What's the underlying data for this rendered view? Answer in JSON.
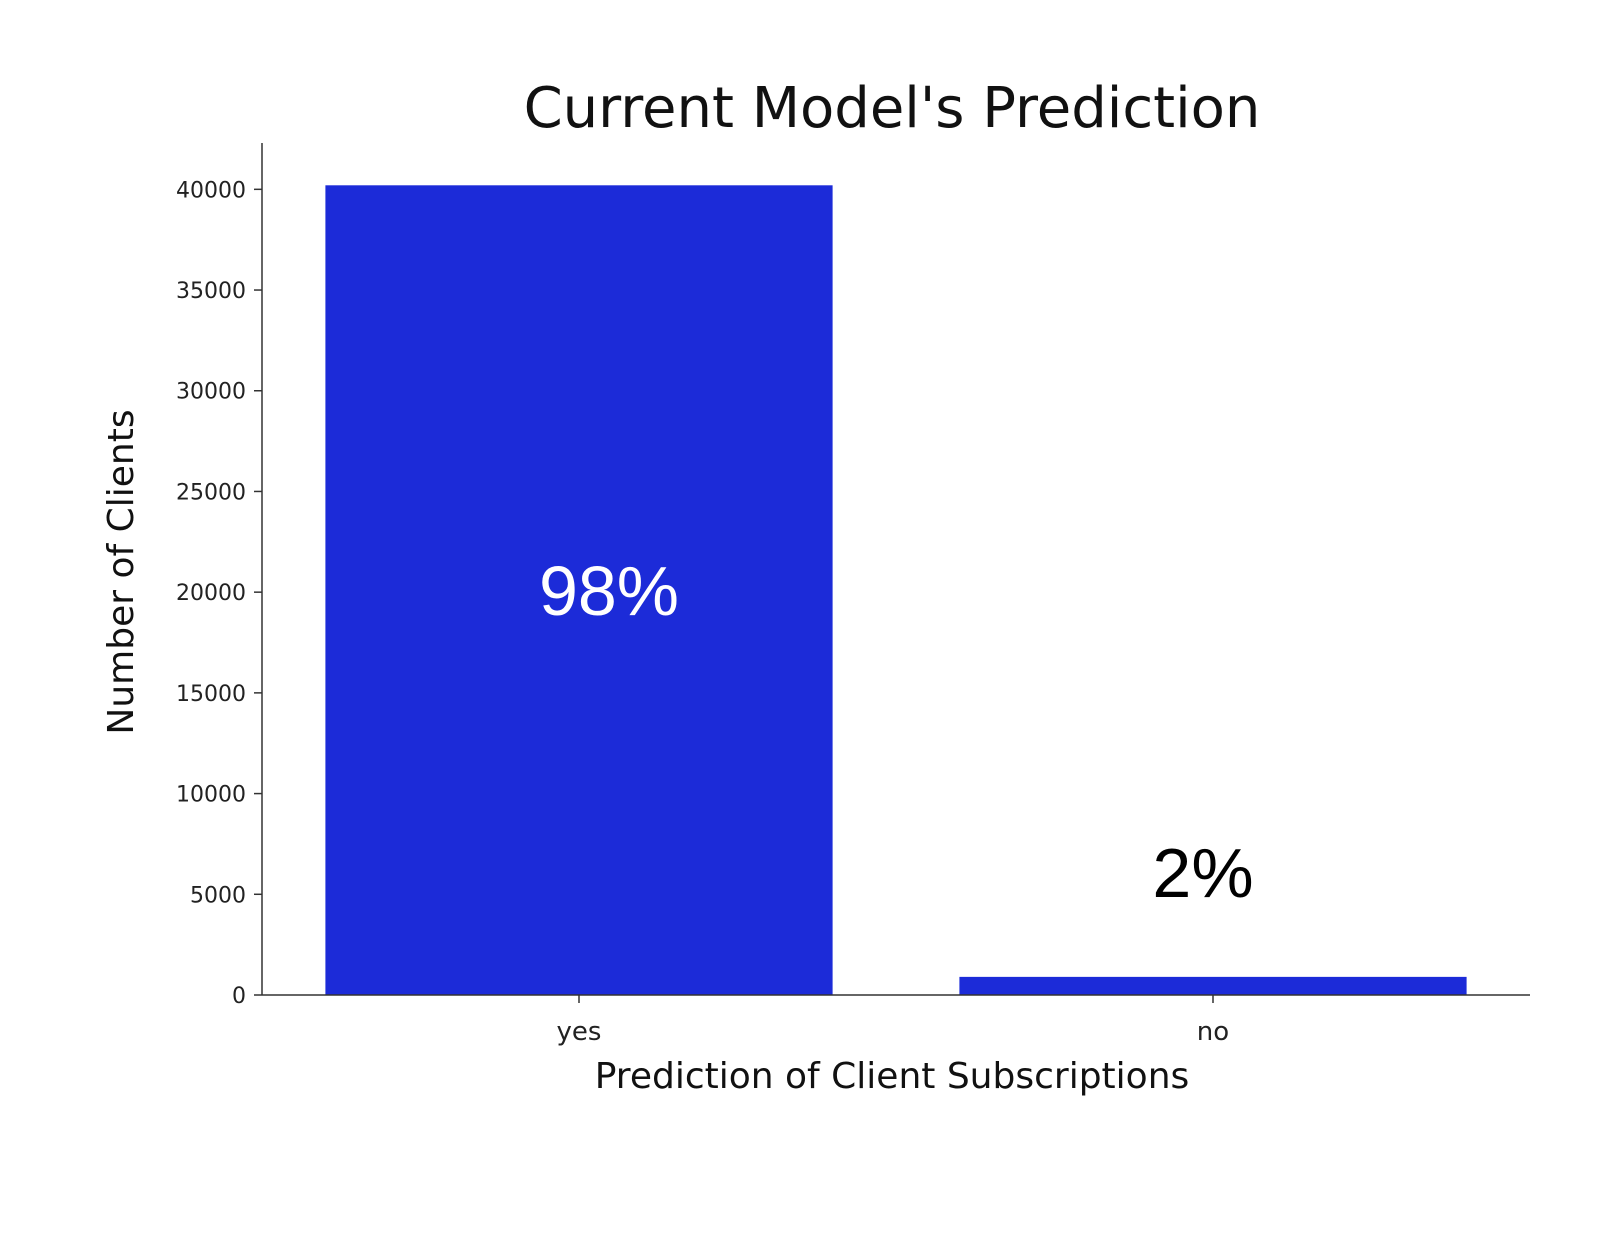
{
  "chart_data": {
    "type": "bar",
    "title": "Current Model's Prediction",
    "xlabel": "Prediction of Client Subscriptions",
    "ylabel": "Number of Clients",
    "categories": [
      "yes",
      "no"
    ],
    "values": [
      40200,
      900
    ],
    "ylim": [
      0,
      42300
    ],
    "yticks": [
      0,
      5000,
      10000,
      15000,
      20000,
      25000,
      30000,
      35000,
      40000
    ],
    "bar_labels": [
      "98%",
      "2%"
    ],
    "bar_label_colors": [
      "#ffffff",
      "#000000"
    ],
    "bar_color": "#1c2bd8",
    "grid": false
  }
}
